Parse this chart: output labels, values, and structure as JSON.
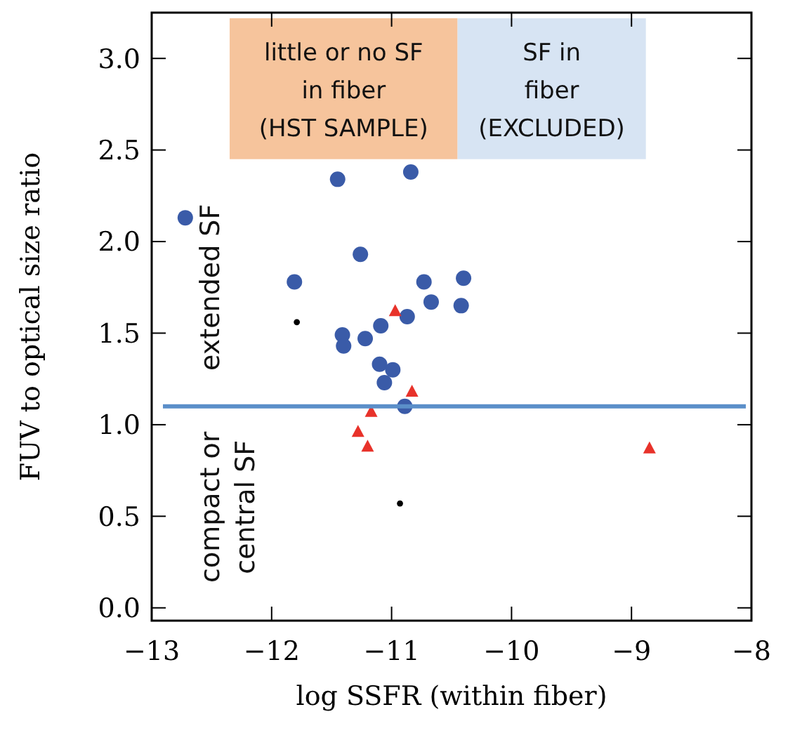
{
  "chart_data": {
    "type": "scatter",
    "xlabel": "log SSFR (within fiber)",
    "ylabel": "FUV to optical size ratio",
    "xlim": [
      -13,
      -8
    ],
    "ylim": [
      -0.07,
      3.25
    ],
    "xticks": [
      {
        "value": -13,
        "label": "−13"
      },
      {
        "value": -12,
        "label": "−12"
      },
      {
        "value": -11,
        "label": "−11"
      },
      {
        "value": -10,
        "label": "−10"
      },
      {
        "value": -9,
        "label": "−9"
      },
      {
        "value": -8,
        "label": "−8"
      }
    ],
    "yticks": [
      {
        "value": 0,
        "label": "0.0"
      },
      {
        "value": 0.5,
        "label": "0.5"
      },
      {
        "value": 1,
        "label": "1.0"
      },
      {
        "value": 1.5,
        "label": "1.5"
      },
      {
        "value": 2,
        "label": "2.0"
      },
      {
        "value": 2.5,
        "label": "2.5"
      },
      {
        "value": 3,
        "label": "3.0"
      }
    ],
    "series": [
      {
        "color": "#3a5ba8",
        "marker": "circle",
        "x": [
          -12.72,
          -11.45,
          -10.84,
          -11.81,
          -11.26,
          -11.41,
          -11.4,
          -11.22,
          -11.09,
          -11.1,
          -10.99,
          -11.06,
          -10.87,
          -10.73,
          -10.67,
          -10.89,
          -10.4,
          -10.42
        ],
        "values": [
          2.13,
          2.34,
          2.38,
          1.78,
          1.93,
          1.49,
          1.43,
          1.47,
          1.54,
          1.33,
          1.3,
          1.23,
          1.59,
          1.78,
          1.67,
          1.1,
          1.8,
          1.65
        ]
      },
      {
        "color": "#e8322a",
        "marker": "triangle",
        "x": [
          -10.97,
          -10.83,
          -11.17,
          -11.28,
          -11.2,
          -8.85
        ],
        "values": [
          1.62,
          1.18,
          1.07,
          0.96,
          0.88,
          0.87
        ]
      },
      {
        "color": "#000000",
        "marker": "circle",
        "x": [
          -11.79,
          -10.93
        ],
        "values": [
          1.56,
          0.57
        ]
      }
    ],
    "ref_lines": [
      {
        "axis": "y",
        "value": 1.1,
        "color": "#5b8fc9"
      }
    ],
    "bands": [
      {
        "axis": "x",
        "from": -12.35,
        "to": -10.45,
        "label": "little or no SF\nin fiber\n(HST SAMPLE)",
        "color": "#f6c49c"
      },
      {
        "axis": "x",
        "from": -10.45,
        "to": -8.88,
        "label": "SF in\nfiber\n(EXCLUDED)",
        "color": "#d7e4f3"
      }
    ],
    "annotations": [
      "extended SF",
      "compact or\ncentral SF"
    ],
    "grid": false
  }
}
